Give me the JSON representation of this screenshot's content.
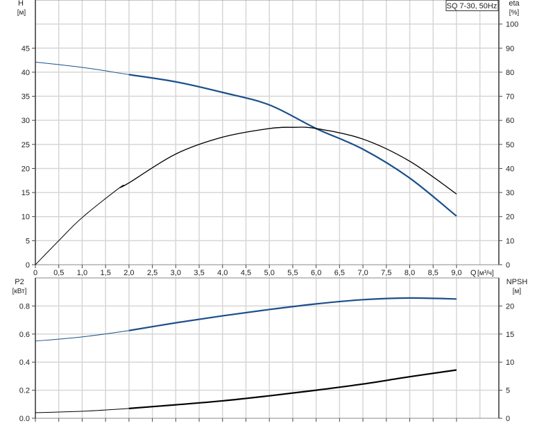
{
  "chart_data": [
    {
      "type": "line",
      "title": "SQ 7-30, 50Hz",
      "xlabel": "Q [м³/ч]",
      "x_axis_name": "Q",
      "x_axis_unit": "[м³/ч]",
      "ylabel_left": "H",
      "ylabel_left_unit": "[м]",
      "ylabel_right": "eta",
      "ylabel_right_unit": "[%]",
      "xlim": [
        0,
        9.9
      ],
      "ylim_left": [
        0,
        55
      ],
      "ylim_right": [
        0,
        110
      ],
      "x_ticks": [
        "0",
        "0,5",
        "1,0",
        "1,5",
        "2,0",
        "2,5",
        "3,0",
        "3,5",
        "4,0",
        "4,5",
        "5,0",
        "5,5",
        "6,0",
        "6,5",
        "7,0",
        "7,5",
        "8,0",
        "8,5",
        "9,0"
      ],
      "y_left_ticks": [
        "0",
        "5",
        "10",
        "15",
        "20",
        "25",
        "30",
        "35",
        "40",
        "45"
      ],
      "y_right_ticks": [
        "0",
        "10",
        "20",
        "30",
        "40",
        "50",
        "60",
        "70",
        "80",
        "90",
        "100"
      ],
      "grid": true,
      "series": [
        {
          "axis": "left",
          "color": "#1a4f8a",
          "x": [
            0,
            1,
            2,
            3,
            4,
            5,
            6,
            7,
            8,
            9
          ],
          "values": [
            42.1,
            41.0,
            39.5,
            38.0,
            35.8,
            33.2,
            28.3,
            24.0,
            18.0,
            10.1
          ]
        },
        {
          "axis": "right",
          "color": "#000000",
          "x": [
            0,
            0.5,
            1,
            1.8,
            2,
            3,
            4,
            5,
            5.5,
            6,
            7,
            8,
            9
          ],
          "values": [
            0,
            10,
            19.6,
            32,
            34,
            46,
            53,
            56.6,
            57.1,
            56.6,
            52.2,
            43,
            29.4
          ]
        }
      ]
    },
    {
      "type": "line",
      "ylabel_left": "P2",
      "ylabel_left_unit": "[кВт]",
      "ylabel_right": "NPSH",
      "ylabel_right_unit": "[м]",
      "xlim": [
        0,
        9.9
      ],
      "ylim_left": [
        0,
        1.0
      ],
      "ylim_right": [
        0,
        25
      ],
      "y_left_ticks": [
        "0.0",
        "0.2",
        "0.4",
        "0.6",
        "0.8"
      ],
      "y_right_ticks": [
        "0",
        "5",
        "10",
        "15",
        "20"
      ],
      "grid": true,
      "series": [
        {
          "axis": "left",
          "color": "#1a4f8a",
          "x": [
            0,
            1,
            2,
            3,
            4,
            5,
            6,
            7,
            8,
            9
          ],
          "values": [
            0.55,
            0.58,
            0.625,
            0.68,
            0.73,
            0.775,
            0.815,
            0.845,
            0.857,
            0.85
          ]
        },
        {
          "axis": "right",
          "color": "#000000",
          "x": [
            0,
            1,
            2,
            3,
            4,
            5,
            6,
            7,
            8,
            9
          ],
          "values": [
            1.0,
            1.25,
            1.75,
            2.4,
            3.1,
            4.0,
            5.0,
            6.1,
            7.4,
            8.6
          ]
        }
      ]
    }
  ]
}
